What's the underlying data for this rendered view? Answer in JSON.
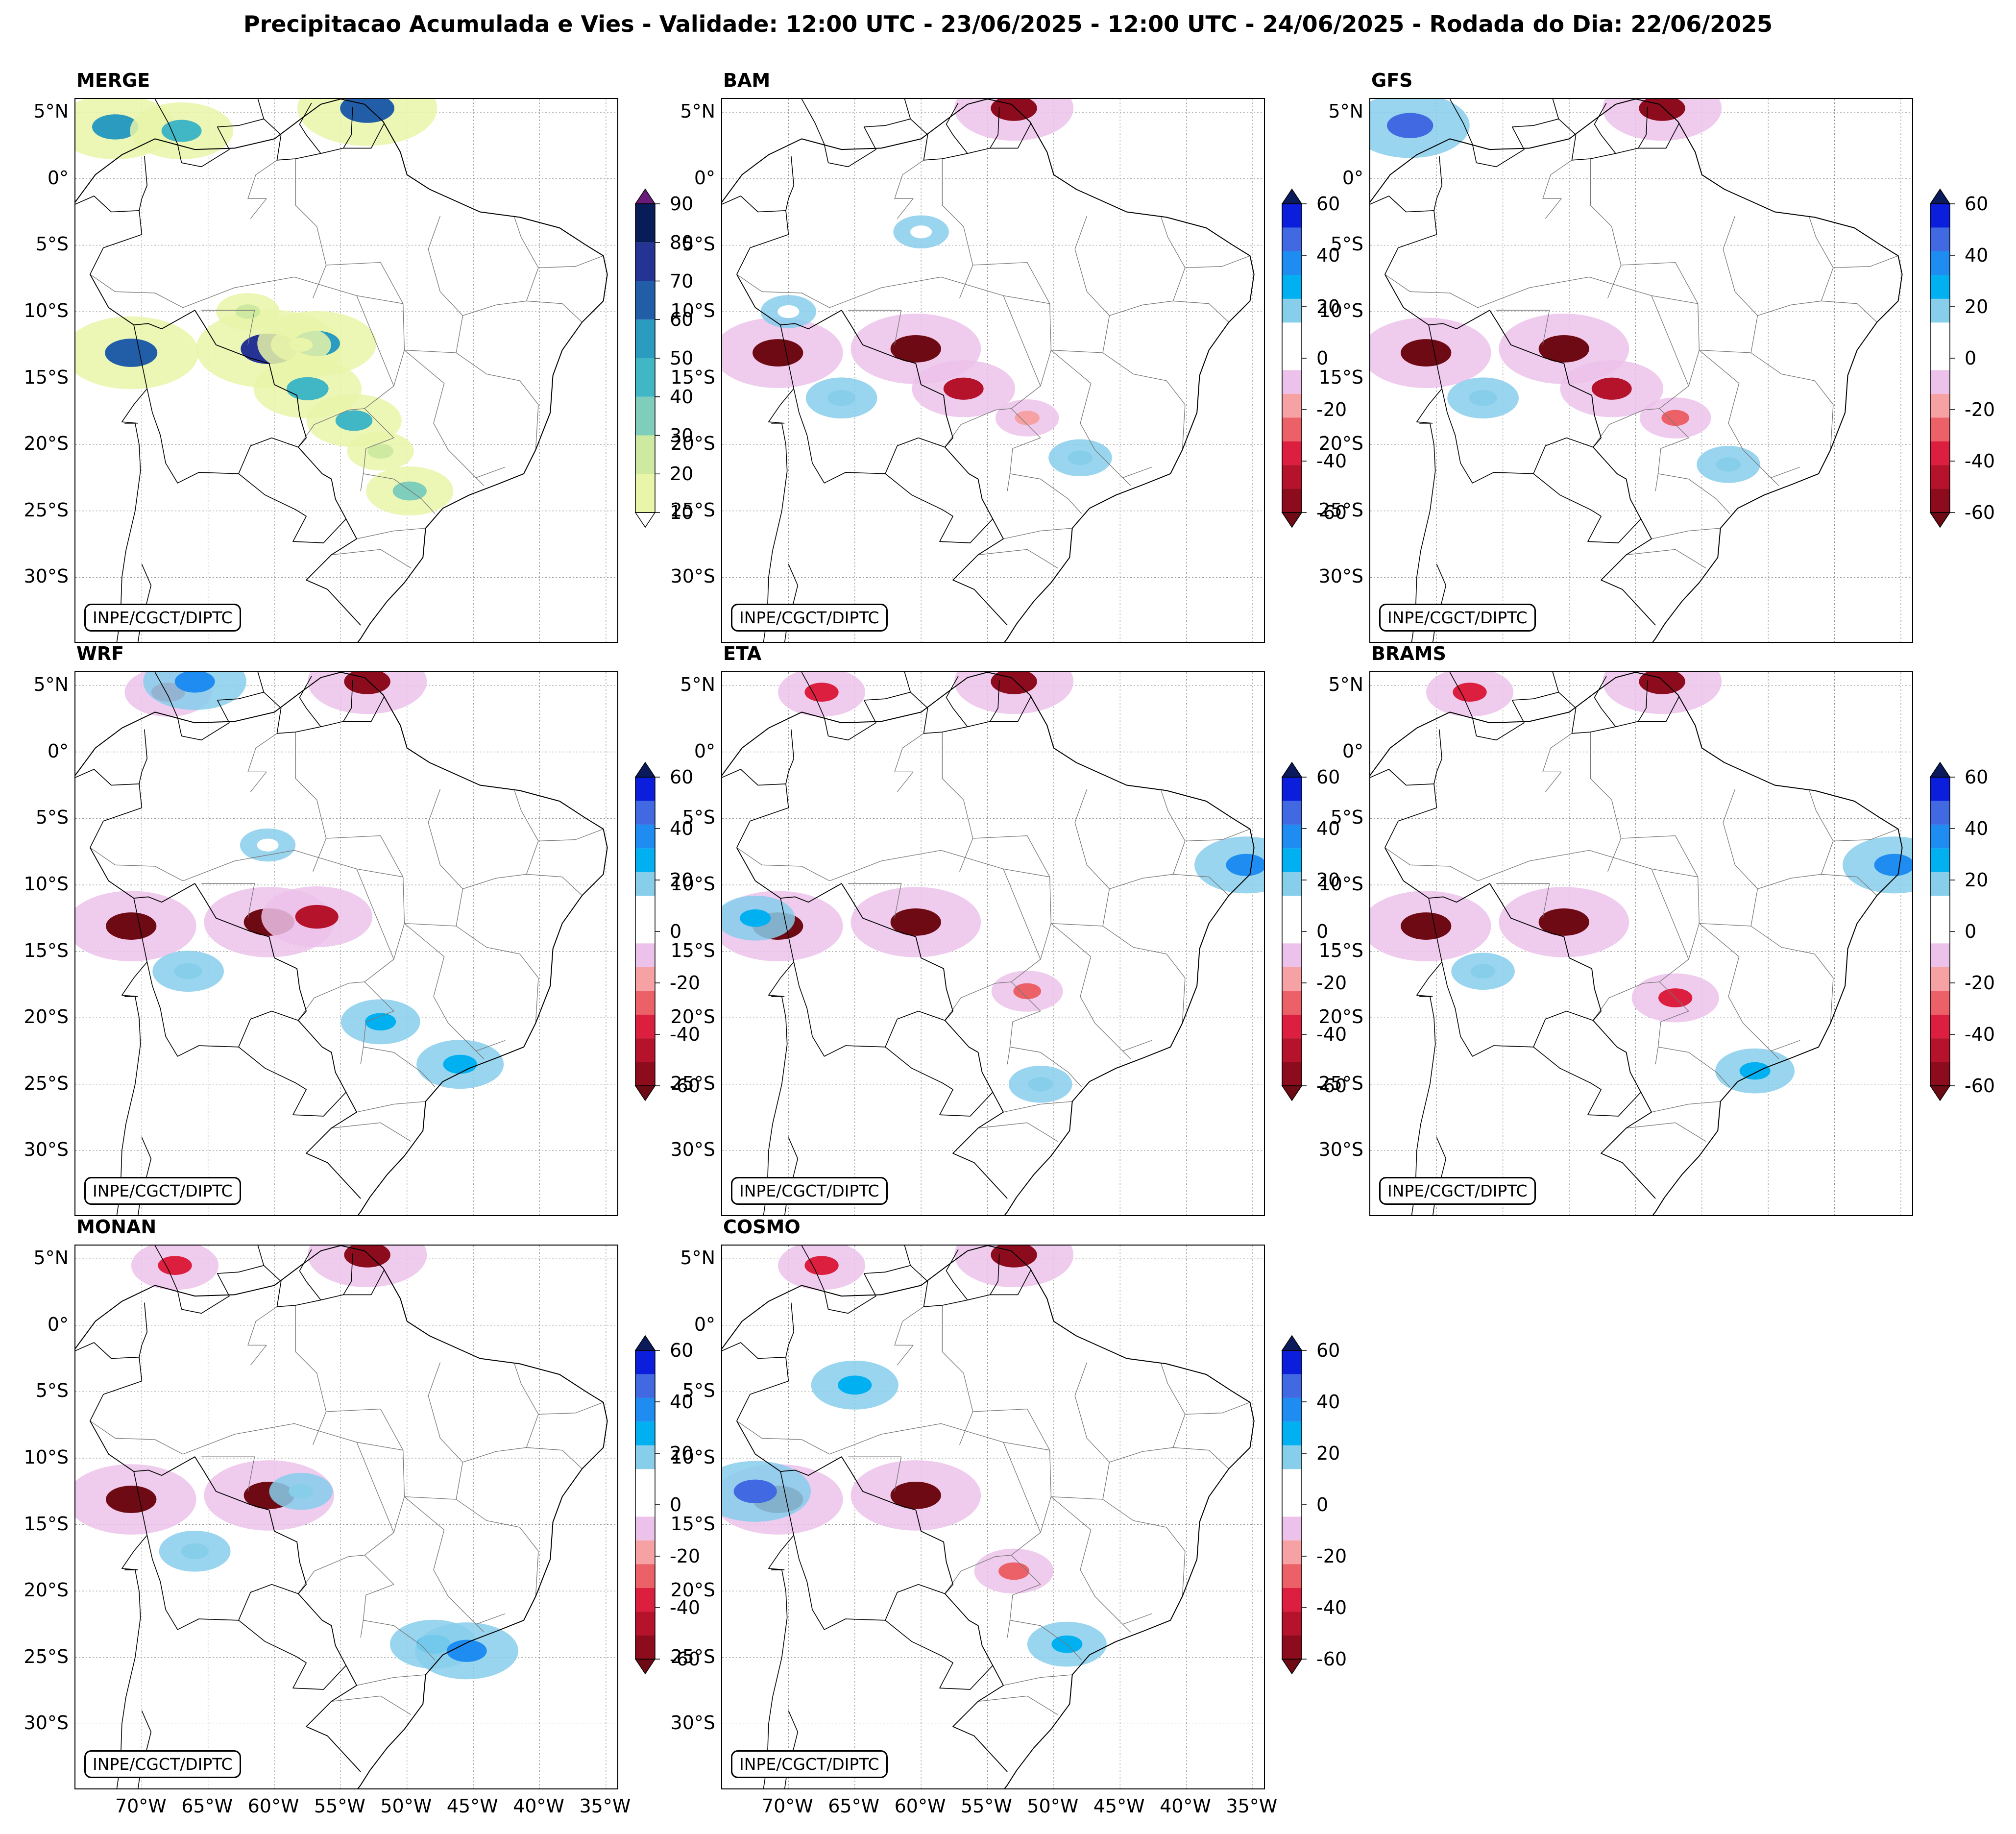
{
  "title": "Precipitacao Acumulada e Vies - Validade: 12:00 UTC - 23/06/2025 - 12:00 UTC - 24/06/2025 - Rodada do Dia: 22/06/2025",
  "credit": "INPE/CGCT/DIPTC",
  "lat_labels": [
    "5°N",
    "0°",
    "5°S",
    "10°S",
    "15°S",
    "20°S",
    "25°S",
    "30°S"
  ],
  "lon_labels": [
    "70°W",
    "65°W",
    "60°W",
    "55°W",
    "50°W",
    "45°W",
    "40°W",
    "35°W"
  ],
  "colorbar_accum": {
    "ticks": [
      "90",
      "80",
      "70",
      "60",
      "50",
      "40",
      "30",
      "20",
      "10"
    ],
    "colors": [
      "#e9f5a8",
      "#cdeaa0",
      "#7fcdbb",
      "#41b6c4",
      "#2c9bc0",
      "#225ea8",
      "#253494",
      "#081d58"
    ],
    "over_color": "#6a1b7a"
  },
  "colorbar_bias": {
    "ticks": [
      "60",
      "40",
      "20",
      "0",
      "-20",
      "-40",
      "-60"
    ],
    "colors": [
      "#8c0c1e",
      "#b5132b",
      "#dc1f3f",
      "#ec6067",
      "#f6a1a3",
      "#ecc2ea",
      "#ffffff",
      "#ffffff",
      "#87ceeb",
      "#00b0f0",
      "#1e8cf0",
      "#4169e1",
      "#0a1edc"
    ],
    "over_color": "#0b1a5a",
    "under_color": "#6e0a14"
  },
  "panels": [
    {
      "name": "MERGE",
      "type": "accum",
      "spots": [
        {
          "lon": -70.8,
          "lat": -13.1,
          "v": 65
        },
        {
          "lon": -60.4,
          "lat": -12.8,
          "v": 72
        },
        {
          "lon": -56.8,
          "lat": -12.4,
          "v": 55
        },
        {
          "lon": -57.5,
          "lat": -15.8,
          "v": 48
        },
        {
          "lon": -54,
          "lat": -18.2,
          "v": 40
        },
        {
          "lon": -49.8,
          "lat": -23.5,
          "v": 35
        },
        {
          "lon": -72,
          "lat": 3.9,
          "v": 55
        },
        {
          "lon": -67,
          "lat": 3.6,
          "v": 45
        },
        {
          "lon": -53,
          "lat": 5.3,
          "v": 68
        },
        {
          "lon": -62,
          "lat": -10,
          "v": 20
        },
        {
          "lon": -58,
          "lat": -12.5,
          "v": 18
        },
        {
          "lon": -52,
          "lat": -20.5,
          "v": 22
        }
      ]
    },
    {
      "name": "BAM",
      "type": "bias",
      "spots": [
        {
          "lon": -70.8,
          "lat": -13.1,
          "v": -62
        },
        {
          "lon": -60.4,
          "lat": -12.8,
          "v": -62
        },
        {
          "lon": -56.8,
          "lat": -15.8,
          "v": -45
        },
        {
          "lon": -53,
          "lat": 5.3,
          "v": -55
        },
        {
          "lon": -52,
          "lat": -18,
          "v": -20
        },
        {
          "lon": -70,
          "lat": -10,
          "v": 15
        },
        {
          "lon": -60,
          "lat": -4,
          "v": 15
        },
        {
          "lon": -48,
          "lat": -21,
          "v": 20
        },
        {
          "lon": -66,
          "lat": -16.5,
          "v": 25
        }
      ]
    },
    {
      "name": "GFS",
      "type": "bias",
      "spots": [
        {
          "lon": -72,
          "lat": 4,
          "v": 55
        },
        {
          "lon": -70.8,
          "lat": -13.1,
          "v": -62
        },
        {
          "lon": -60.4,
          "lat": -12.8,
          "v": -62
        },
        {
          "lon": -56.8,
          "lat": -15.8,
          "v": -45
        },
        {
          "lon": -53,
          "lat": 5.3,
          "v": -55
        },
        {
          "lon": -52,
          "lat": -18,
          "v": -25
        },
        {
          "lon": -48,
          "lat": -21.5,
          "v": 20
        },
        {
          "lon": -66.5,
          "lat": -16.5,
          "v": 25
        }
      ]
    },
    {
      "name": "WRF",
      "type": "bias",
      "spots": [
        {
          "lon": -70.8,
          "lat": -13.1,
          "v": -62
        },
        {
          "lon": -60.4,
          "lat": -12.8,
          "v": -62
        },
        {
          "lon": -56.8,
          "lat": -12.4,
          "v": -50
        },
        {
          "lon": -53,
          "lat": 5.3,
          "v": -55
        },
        {
          "lon": -68,
          "lat": 4.5,
          "v": -35
        },
        {
          "lon": -66,
          "lat": 5.3,
          "v": 45
        },
        {
          "lon": -52,
          "lat": -20.3,
          "v": 30
        },
        {
          "lon": -46,
          "lat": -23.5,
          "v": 35
        },
        {
          "lon": -60.5,
          "lat": -7,
          "v": 15
        },
        {
          "lon": -66.5,
          "lat": -16.5,
          "v": 25
        }
      ]
    },
    {
      "name": "ETA",
      "type": "bias",
      "spots": [
        {
          "lon": -70.8,
          "lat": -13.1,
          "v": -62
        },
        {
          "lon": -60.4,
          "lat": -12.8,
          "v": -62
        },
        {
          "lon": -53,
          "lat": 5.3,
          "v": -55
        },
        {
          "lon": -67.5,
          "lat": 4.5,
          "v": -35
        },
        {
          "lon": -35.5,
          "lat": -8.5,
          "v": 45
        },
        {
          "lon": -51,
          "lat": -25,
          "v": 20
        },
        {
          "lon": -52,
          "lat": -18,
          "v": -25
        },
        {
          "lon": -72.5,
          "lat": -12.5,
          "v": 30
        }
      ]
    },
    {
      "name": "BRAMS",
      "type": "bias",
      "spots": [
        {
          "lon": -70.8,
          "lat": -13.1,
          "v": -62
        },
        {
          "lon": -60.4,
          "lat": -12.8,
          "v": -62
        },
        {
          "lon": -53,
          "lat": 5.3,
          "v": -55
        },
        {
          "lon": -67.5,
          "lat": 4.5,
          "v": -35
        },
        {
          "lon": -35.5,
          "lat": -8.5,
          "v": 45
        },
        {
          "lon": -52,
          "lat": -18.5,
          "v": -35
        },
        {
          "lon": -46,
          "lat": -24,
          "v": 30
        },
        {
          "lon": -66.5,
          "lat": -16.5,
          "v": 20
        }
      ]
    },
    {
      "name": "MONAN",
      "type": "bias",
      "spots": [
        {
          "lon": -70.8,
          "lat": -13.1,
          "v": -62
        },
        {
          "lon": -60.4,
          "lat": -12.8,
          "v": -62
        },
        {
          "lon": -53,
          "lat": 5.3,
          "v": -55
        },
        {
          "lon": -67.5,
          "lat": 4.5,
          "v": -35
        },
        {
          "lon": -48,
          "lat": -24,
          "v": 35
        },
        {
          "lon": -45.5,
          "lat": -24.5,
          "v": 45
        },
        {
          "lon": -66,
          "lat": -17,
          "v": 25
        },
        {
          "lon": -58,
          "lat": -12.5,
          "v": 20
        }
      ]
    },
    {
      "name": "COSMO",
      "type": "bias",
      "spots": [
        {
          "lon": -70.8,
          "lat": -13.1,
          "v": -62
        },
        {
          "lon": -60.4,
          "lat": -12.8,
          "v": -62
        },
        {
          "lon": -53,
          "lat": 5.3,
          "v": -55
        },
        {
          "lon": -67.5,
          "lat": 4.5,
          "v": -35
        },
        {
          "lon": -65,
          "lat": -4.5,
          "v": 35
        },
        {
          "lon": -72.5,
          "lat": -12.5,
          "v": 50
        },
        {
          "lon": -49,
          "lat": -24,
          "v": 30
        },
        {
          "lon": -53,
          "lat": -18.5,
          "v": -30
        }
      ]
    }
  ]
}
